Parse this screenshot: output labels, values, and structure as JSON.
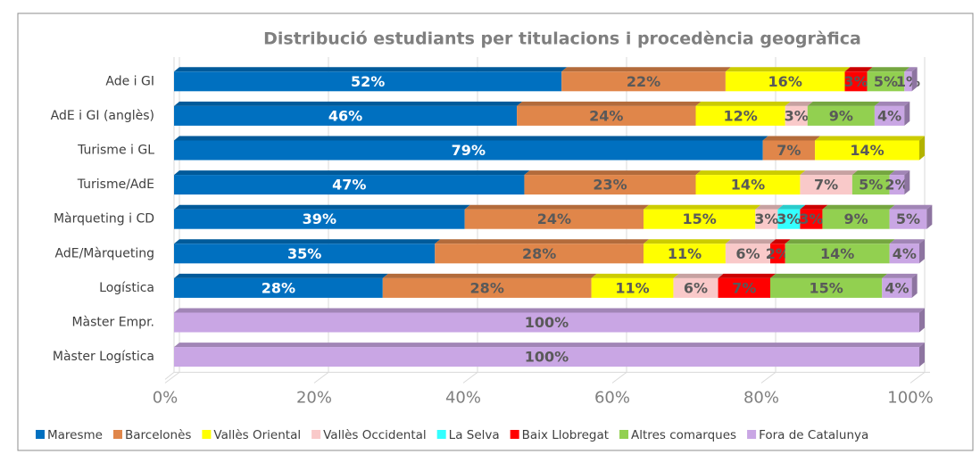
{
  "chart_data": {
    "type": "stacked_bar_horizontal",
    "title": "Distribució estudiants per titulacions i procedència geogràfica",
    "categories": [
      "Ade i GI",
      "AdE i GI (anglès)",
      "Turisme i GL",
      "Turisme/AdE",
      "Màrqueting i CD",
      "AdE/Màrqueting",
      "Logística",
      "Màster Empr.",
      "Màster Logística"
    ],
    "series": [
      {
        "name": "Maresme",
        "color": "#0070c0",
        "values": [
          52,
          46,
          79,
          47,
          39,
          35,
          28,
          null,
          null
        ],
        "value_labels": [
          "52%",
          "46%",
          "79%",
          "47%",
          "39%",
          "35%",
          "28%",
          null,
          null
        ]
      },
      {
        "name": "Barcelonès",
        "color": "#e0864a",
        "values": [
          22,
          24,
          7,
          23,
          24,
          28,
          28,
          null,
          null
        ],
        "value_labels": [
          "22%",
          "24%",
          "7%",
          "23%",
          "24%",
          "28%",
          "28%",
          null,
          null
        ]
      },
      {
        "name": "Vallès Oriental",
        "color": "#ffff00",
        "values": [
          16,
          12,
          14,
          14,
          15,
          11,
          11,
          null,
          null
        ],
        "value_labels": [
          "16%",
          "12%",
          "14%",
          "14%",
          "15%",
          "11%",
          "11%",
          null,
          null
        ]
      },
      {
        "name": "Vallès Occidental",
        "color": "#f9c9c9",
        "values": [
          null,
          3,
          null,
          7,
          3,
          6,
          6,
          null,
          null
        ],
        "value_labels": [
          null,
          "3%",
          null,
          "7%",
          "3%",
          "6%",
          "6%",
          null,
          null
        ]
      },
      {
        "name": "La Selva",
        "color": "#33ffff",
        "values": [
          null,
          null,
          null,
          null,
          3,
          null,
          null,
          null,
          null
        ],
        "value_labels": [
          null,
          null,
          null,
          null,
          "3%",
          null,
          null,
          null,
          null
        ]
      },
      {
        "name": "Baix Llobregat",
        "color": "#ff0000",
        "values": [
          3,
          null,
          null,
          null,
          3,
          2,
          7,
          null,
          null
        ],
        "value_labels": [
          "3%",
          null,
          null,
          null,
          "3%",
          "2%",
          "7%",
          null,
          null
        ]
      },
      {
        "name": "Altres comarques",
        "color": "#92d050",
        "values": [
          5,
          9,
          null,
          5,
          9,
          14,
          15,
          null,
          null
        ],
        "value_labels": [
          "5%",
          "9%",
          null,
          "5%",
          "9%",
          "14%",
          "15%",
          null,
          null
        ]
      },
      {
        "name": "Fora de Catalunya",
        "color": "#c9a6e4",
        "values": [
          1,
          4,
          null,
          2,
          5,
          4,
          4,
          100,
          100
        ],
        "value_labels": [
          "1%",
          "4%",
          null,
          "2%",
          "5%",
          "4%",
          "4%",
          "100%",
          "100%"
        ]
      }
    ],
    "xlim": [
      0,
      100
    ],
    "xticks": [
      {
        "value": 0,
        "label": "0%"
      },
      {
        "value": 20,
        "label": "20%"
      },
      {
        "value": 40,
        "label": "40%"
      },
      {
        "value": 60,
        "label": "60%"
      },
      {
        "value": 80,
        "label": "80%"
      },
      {
        "value": 100,
        "label": "100%"
      }
    ],
    "grid": true,
    "legend": "bottom"
  }
}
